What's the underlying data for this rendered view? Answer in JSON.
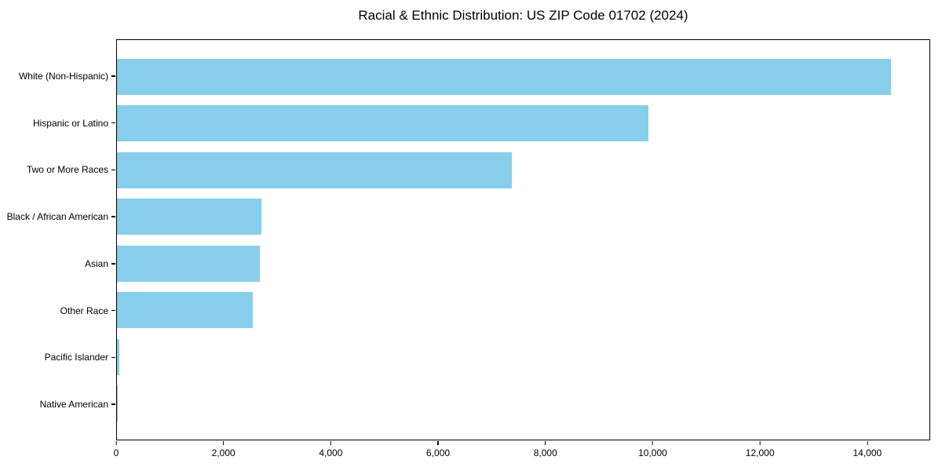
{
  "chart_data": {
    "type": "bar",
    "orientation": "horizontal",
    "title": "Racial & Ethnic Distribution: US ZIP Code 01702 (2024)",
    "categories": [
      "White (Non-Hispanic)",
      "Hispanic or Latino",
      "Two or More Races",
      "Black / African American",
      "Asian",
      "Other Race",
      "Pacific Islander",
      "Native American"
    ],
    "values": [
      14450,
      9930,
      7370,
      2700,
      2670,
      2530,
      50,
      15
    ],
    "bar_color": "#87CEEB",
    "frame_color": "#000000",
    "background_color": "#ffffff",
    "xlim": [
      0,
      15173
    ],
    "xticks": [
      0,
      2000,
      4000,
      6000,
      8000,
      10000,
      12000,
      14000
    ],
    "xtick_labels": [
      "0",
      "2,000",
      "4,000",
      "6,000",
      "8,000",
      "10,000",
      "12,000",
      "14,000"
    ],
    "xlabel": "",
    "ylabel": "",
    "grid": false,
    "legend": null
  }
}
